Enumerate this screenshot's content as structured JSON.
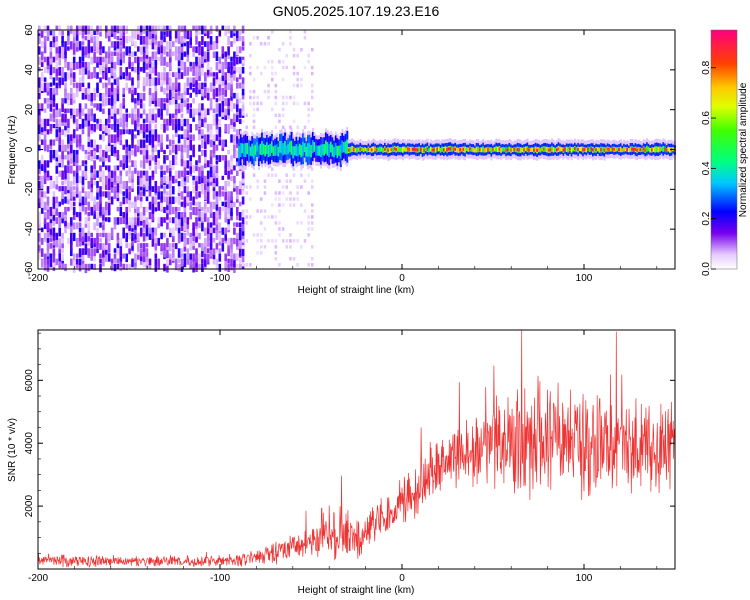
{
  "title": "GN05.2025.107.19.23.E16",
  "chart_data": [
    {
      "type": "heatmap",
      "xlabel": "Height of straight line (km)",
      "ylabel": "Frequency (Hz)",
      "xlim": [
        -200,
        150
      ],
      "ylim": [
        -60,
        60
      ],
      "xticks": [
        -200,
        -100,
        0,
        100
      ],
      "yticks": [
        60,
        40,
        20,
        0,
        -20,
        -40,
        -60
      ],
      "colorbar": {
        "label": "Normalized spectral amplitude",
        "range": [
          0.0,
          0.95
        ],
        "ticks": [
          0.0,
          0.2,
          0.4,
          0.6,
          0.8
        ]
      },
      "regions": [
        {
          "x": [
            -200,
            -90
          ],
          "description_level": "broadband noise, amplitude ~0.05-0.15 across all frequencies"
        },
        {
          "x": [
            -90,
            -50
          ],
          "description_level": "sparse weak noise, amplitude ~0.02-0.05"
        },
        {
          "x": [
            -90,
            -30
          ],
          "f_center": 0,
          "f_halfwidth": 6,
          "amplitude": 0.35
        },
        {
          "x": [
            -30,
            150
          ],
          "f_center": 0,
          "f_halfwidth": 3,
          "amplitude": 0.9
        }
      ]
    },
    {
      "type": "line",
      "xlabel": "Height of straight line (km)",
      "ylabel": "SNR (10 * v/v)",
      "xlim": [
        -200,
        150
      ],
      "ylim": [
        0,
        7600
      ],
      "xticks": [
        -200,
        -100,
        0,
        100
      ],
      "yticks": [
        2000,
        4000,
        6000
      ],
      "color": "#ee3333",
      "envelope": {
        "x": [
          -200,
          -150,
          -100,
          -85,
          -75,
          -65,
          -55,
          -45,
          -35,
          -25,
          -15,
          -5,
          5,
          15,
          25,
          35,
          45,
          55,
          65,
          75,
          85,
          100,
          115,
          130,
          150
        ],
        "mean": [
          250,
          250,
          250,
          300,
          450,
          600,
          800,
          1000,
          1400,
          900,
          1500,
          1900,
          2300,
          3000,
          3600,
          3800,
          3900,
          4000,
          4100,
          4200,
          4050,
          4000,
          3900,
          3950,
          4000
        ],
        "spread": [
          150,
          150,
          150,
          200,
          250,
          350,
          400,
          500,
          900,
          500,
          500,
          600,
          700,
          800,
          800,
          900,
          1000,
          1200,
          1500,
          1600,
          1500,
          1400,
          1300,
          1200,
          1100
        ]
      }
    }
  ]
}
